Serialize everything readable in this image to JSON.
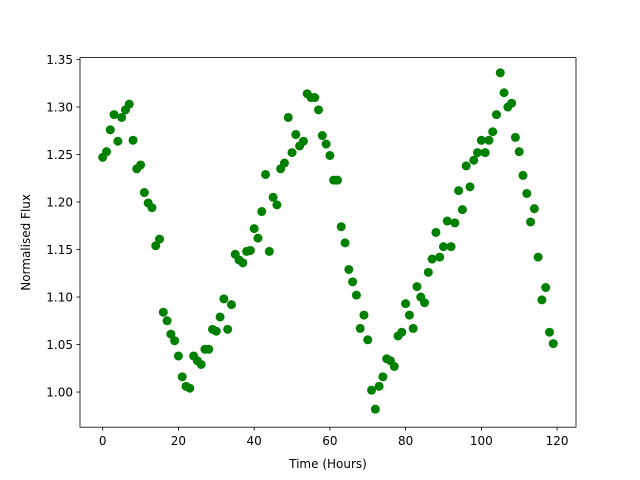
{
  "chart_data": {
    "type": "scatter",
    "title": "",
    "xlabel": "Time (Hours)",
    "ylabel": "Normalised Flux",
    "xlim": [
      -6,
      125
    ],
    "ylim": [
      0.963,
      1.352
    ],
    "xticks": [
      0,
      20,
      40,
      60,
      80,
      100,
      120
    ],
    "xtick_labels": [
      "0",
      "20",
      "40",
      "60",
      "80",
      "100",
      "120"
    ],
    "yticks": [
      1.0,
      1.05,
      1.1,
      1.15,
      1.2,
      1.25,
      1.3,
      1.35
    ],
    "ytick_labels": [
      "1.00",
      "1.05",
      "1.10",
      "1.15",
      "1.20",
      "1.25",
      "1.30",
      "1.35"
    ],
    "grid": false,
    "legend": "none",
    "marker_color": "#008000",
    "series": [
      {
        "x": [
          0,
          1,
          2,
          3,
          4,
          5,
          6,
          7,
          8,
          9,
          10,
          11,
          12,
          13,
          14,
          15,
          16,
          17,
          18,
          19,
          20,
          21,
          22,
          23,
          24,
          25,
          26,
          27,
          28,
          29,
          30,
          31,
          32,
          33,
          34,
          35,
          36,
          37,
          38,
          39,
          40,
          41,
          42,
          43,
          44,
          45,
          46,
          47,
          48,
          49,
          50,
          51,
          52,
          53,
          54,
          55,
          56,
          57,
          58,
          59,
          60,
          61,
          62,
          63,
          64,
          65,
          66,
          67,
          68,
          69,
          70,
          71,
          72,
          73,
          74,
          75,
          76,
          77,
          78,
          79,
          80,
          81,
          82,
          83,
          84,
          85,
          86,
          87,
          88,
          89,
          90,
          91,
          92,
          93,
          94,
          95,
          96,
          97,
          98,
          99,
          100,
          101,
          102,
          103,
          104,
          105,
          106,
          107,
          108,
          109,
          110,
          111,
          112,
          113,
          114,
          115,
          116,
          117,
          118,
          119
        ],
        "y": [
          1.247,
          1.253,
          1.276,
          1.292,
          1.264,
          1.289,
          1.297,
          1.303,
          1.265,
          1.235,
          1.239,
          1.21,
          1.199,
          1.194,
          1.154,
          1.161,
          1.084,
          1.075,
          1.061,
          1.054,
          1.038,
          1.016,
          1.006,
          1.004,
          1.038,
          1.033,
          1.029,
          1.045,
          1.045,
          1.066,
          1.064,
          1.079,
          1.098,
          1.066,
          1.092,
          1.145,
          1.139,
          1.136,
          1.148,
          1.149,
          1.172,
          1.162,
          1.19,
          1.229,
          1.148,
          1.205,
          1.197,
          1.235,
          1.241,
          1.289,
          1.252,
          1.271,
          1.259,
          1.264,
          1.314,
          1.31,
          1.31,
          1.297,
          1.27,
          1.261,
          1.249,
          1.223,
          1.223,
          1.174,
          1.157,
          1.129,
          1.116,
          1.102,
          1.067,
          1.081,
          1.055,
          1.002,
          0.982,
          1.006,
          1.016,
          1.035,
          1.033,
          1.027,
          1.059,
          1.063,
          1.093,
          1.081,
          1.067,
          1.111,
          1.1,
          1.094,
          1.126,
          1.14,
          1.168,
          1.142,
          1.153,
          1.18,
          1.153,
          1.178,
          1.212,
          1.192,
          1.238,
          1.216,
          1.244,
          1.252,
          1.265,
          1.252,
          1.265,
          1.274,
          1.292,
          1.336,
          1.315,
          1.3,
          1.304,
          1.268,
          1.253,
          1.228,
          1.209,
          1.179,
          1.193,
          1.142,
          1.097,
          1.11,
          1.063,
          1.051
        ]
      }
    ]
  }
}
